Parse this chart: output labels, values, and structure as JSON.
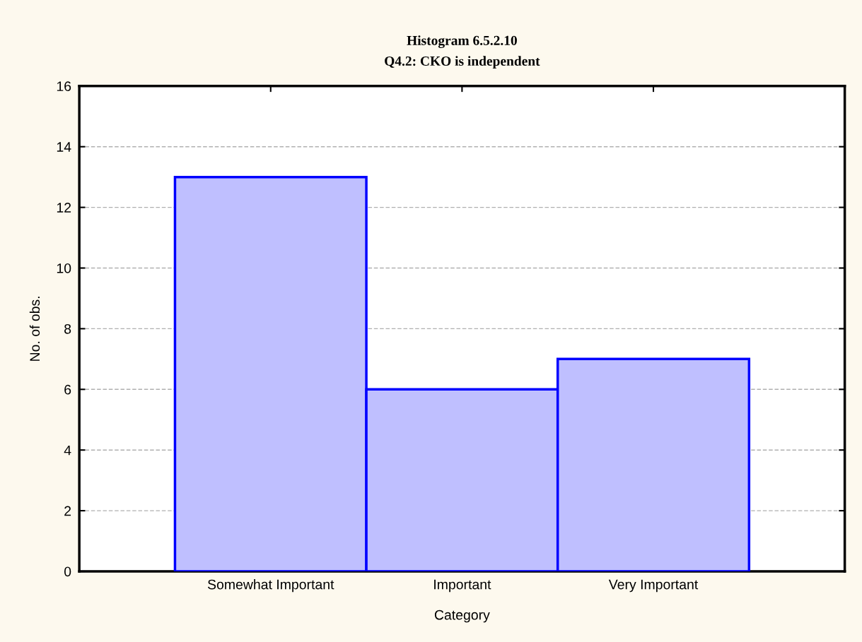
{
  "chart_data": {
    "type": "bar",
    "title": "Histogram 6.5.2.10",
    "subtitle": "Q4.2: CKO is independent",
    "xlabel": "Category",
    "ylabel": "No. of obs.",
    "categories": [
      "Somewhat Important",
      "Important",
      "Very Important"
    ],
    "values": [
      13,
      6,
      7
    ],
    "color": "#bfbfff",
    "ylim": [
      0,
      16
    ],
    "yticks": [
      0,
      2,
      4,
      6,
      8,
      10,
      12,
      14,
      16
    ],
    "grid": "y"
  }
}
